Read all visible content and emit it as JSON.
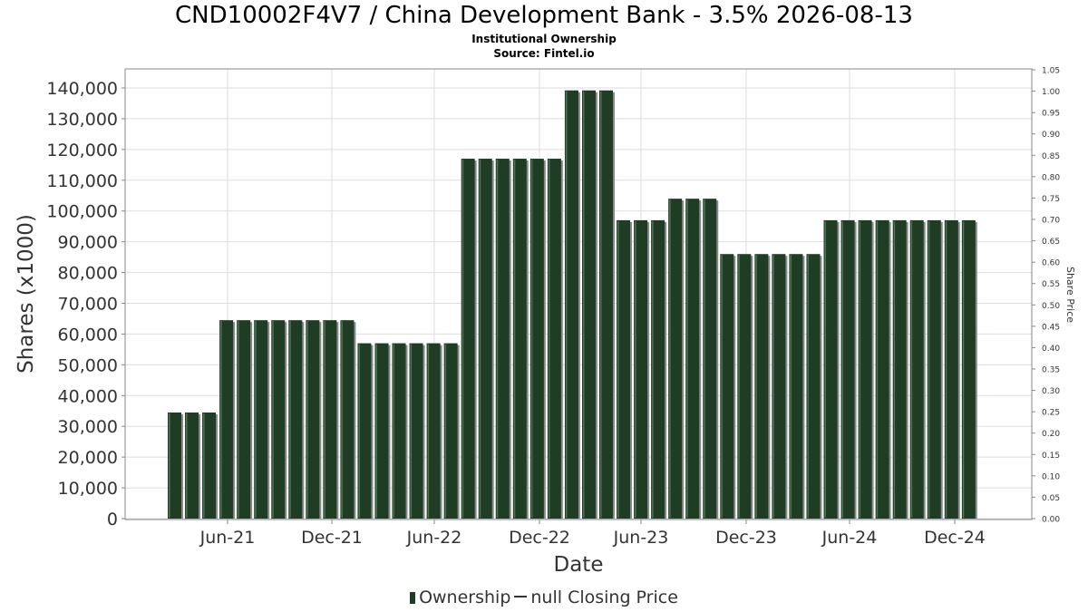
{
  "header": {
    "title": "CND10002F4V7 / China Development Bank - 3.5% 2026-08-13",
    "subtitle1": "Institutional Ownership",
    "subtitle2": "Source: Fintel.io"
  },
  "legend": {
    "ownership": "Ownership",
    "closing": "null Closing Price"
  },
  "colors": {
    "bar": "#1e3d24",
    "bar_shadow": "#8a8a8a",
    "grid": "#dddddd",
    "axis": "#888888",
    "text": "#333333"
  },
  "chart_data": {
    "type": "bar",
    "xlabel": "Date",
    "ylabel": "Shares (x1000)",
    "y2label": "Share Price",
    "ylim": [
      0,
      145000
    ],
    "y2lim": [
      0,
      1.05
    ],
    "grid": true,
    "legend_position": "bottom",
    "x_ticks": [
      "Jun-21",
      "Dec-21",
      "Jun-22",
      "Dec-22",
      "Jun-23",
      "Dec-23",
      "Jun-24",
      "Dec-24"
    ],
    "y_ticks": [
      "0",
      "10,000",
      "20,000",
      "30,000",
      "40,000",
      "50,000",
      "60,000",
      "70,000",
      "80,000",
      "90,000",
      "100,000",
      "110,000",
      "120,000",
      "130,000",
      "140,000"
    ],
    "y2_ticks": [
      "0.00",
      "0.05",
      "0.10",
      "0.15",
      "0.20",
      "0.25",
      "0.30",
      "0.35",
      "0.40",
      "0.45",
      "0.50",
      "0.55",
      "0.60",
      "0.65",
      "0.70",
      "0.75",
      "0.80",
      "0.85",
      "0.90",
      "0.95",
      "1.00",
      "1.05"
    ],
    "series": [
      {
        "name": "Ownership",
        "values": [
          34500,
          34500,
          34500,
          64500,
          64500,
          64500,
          64500,
          64500,
          64500,
          64500,
          64500,
          57000,
          57000,
          57000,
          57000,
          57000,
          57000,
          117000,
          117000,
          117000,
          117000,
          117000,
          117000,
          139200,
          139200,
          139200,
          97000,
          97000,
          97000,
          104000,
          104000,
          104000,
          86000,
          86000,
          86000,
          86000,
          86000,
          86000,
          97000,
          97000,
          97000,
          97000,
          97000,
          97000,
          97000,
          97000,
          97000
        ]
      }
    ]
  }
}
